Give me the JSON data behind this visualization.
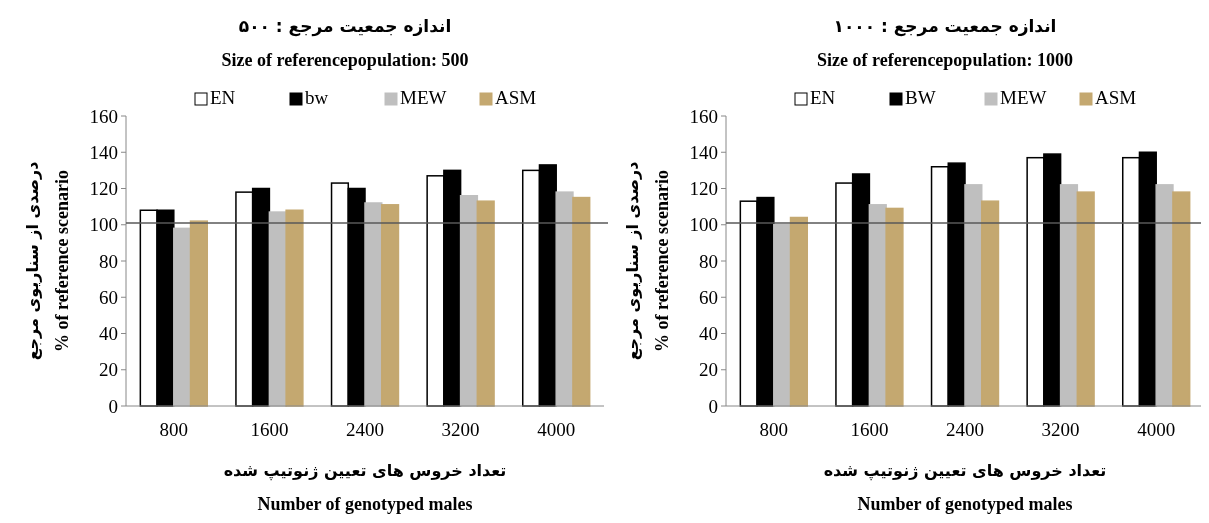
{
  "chart_data": [
    {
      "type": "bar",
      "title": "اندازه جمعیت مرجع : ۵۰۰",
      "subtitle": "Size of referencepopulation: 500",
      "xlabel": "تعداد خروس های تعیین ژنوتیپ شده\nNumber of genotyped males",
      "ylabel": "درصدی از سناریوی مرجع\n% of reference scenario",
      "categories": [
        "800",
        "1600",
        "2400",
        "3200",
        "4000"
      ],
      "series": [
        {
          "name": "EN",
          "color": "#ffffff",
          "values": [
            108,
            118,
            123,
            127,
            130
          ]
        },
        {
          "name": "bw",
          "color": "#000000",
          "values": [
            108,
            120,
            120,
            130,
            133
          ]
        },
        {
          "name": "MEW",
          "color": "#bfbfbf",
          "values": [
            98,
            107,
            112,
            116,
            118
          ]
        },
        {
          "name": "ASM",
          "color": "#c4a870",
          "values": [
            102,
            108,
            111,
            113,
            115
          ]
        }
      ],
      "ylim": [
        0,
        160
      ],
      "yticks": [
        0,
        20,
        40,
        60,
        80,
        100,
        120,
        140,
        160
      ],
      "legend": "top",
      "grid": false,
      "ref_lines": [
        {
          "axis": "y",
          "value": 101,
          "color": "#595959"
        }
      ]
    },
    {
      "type": "bar",
      "title": "اندازه جمعیت مرجع : ۱۰۰۰",
      "subtitle": "Size of referencepopulation: 1000",
      "xlabel": "تعداد خروس های تعیین ژنوتیپ شده\nNumber of genotyped males",
      "ylabel": "درصدی از سناریوی مرجع\n% of reference scenario",
      "categories": [
        "800",
        "1600",
        "2400",
        "3200",
        "4000"
      ],
      "series": [
        {
          "name": "EN",
          "color": "#ffffff",
          "values": [
            113,
            123,
            132,
            137,
            137
          ]
        },
        {
          "name": "BW",
          "color": "#000000",
          "values": [
            115,
            128,
            134,
            139,
            140
          ]
        },
        {
          "name": "MEW",
          "color": "#bfbfbf",
          "values": [
            100,
            111,
            122,
            122,
            122
          ]
        },
        {
          "name": "ASM",
          "color": "#c4a870",
          "values": [
            104,
            109,
            113,
            118,
            118
          ]
        }
      ],
      "ylim": [
        0,
        160
      ],
      "yticks": [
        0,
        20,
        40,
        60,
        80,
        100,
        120,
        140,
        160
      ],
      "legend": "top",
      "grid": false,
      "ref_lines": [
        {
          "axis": "y",
          "value": 101,
          "color": "#595959"
        }
      ]
    }
  ]
}
